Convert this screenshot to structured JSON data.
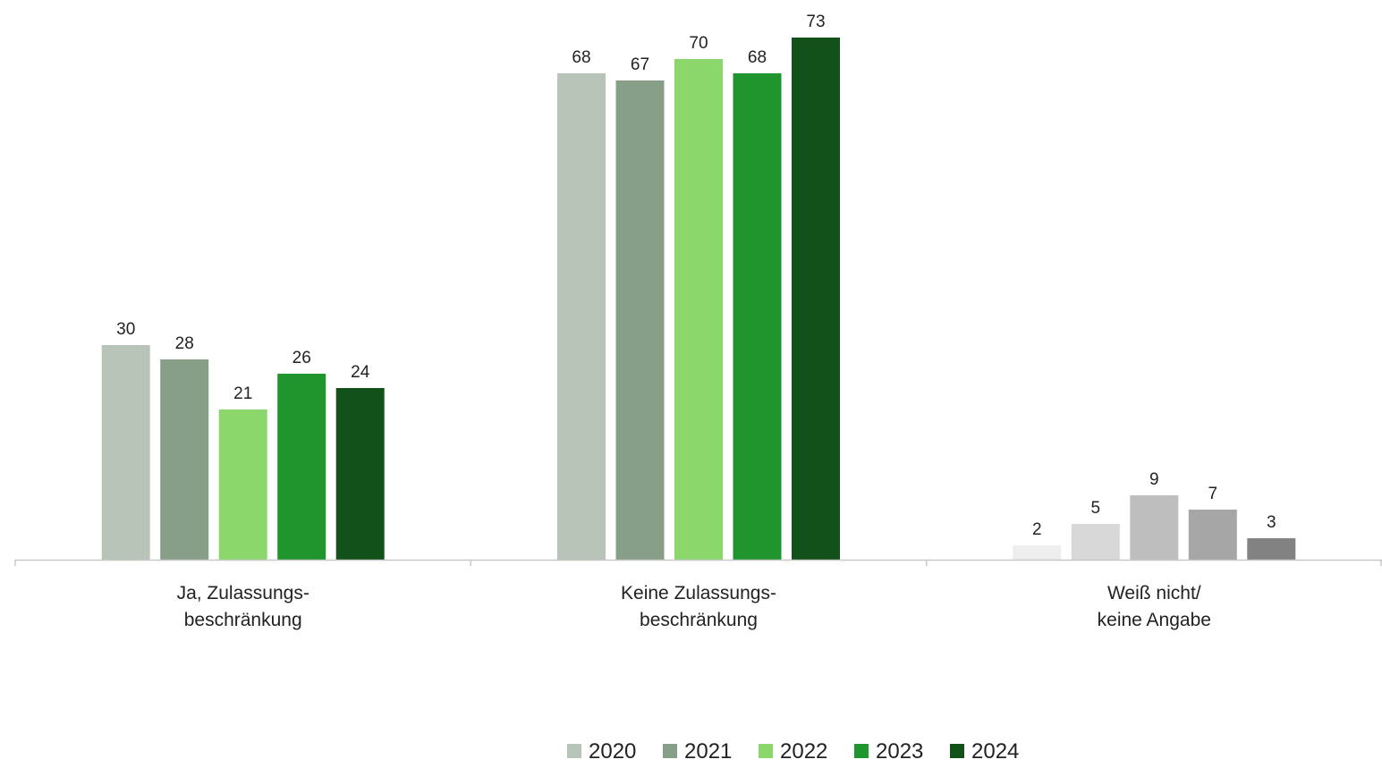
{
  "chart_data": {
    "type": "bar",
    "title": "",
    "xlabel": "",
    "ylabel": "",
    "ylim": [
      0,
      73
    ],
    "grid": false,
    "legend_position": "bottom",
    "categories": [
      [
        "Ja, Zulassungs-",
        "beschränkung"
      ],
      [
        "Keine Zulassungs-",
        "beschränkung"
      ],
      [
        "Weiß nicht/",
        "keine Angabe"
      ]
    ],
    "series": [
      {
        "name": "2020",
        "values": [
          30,
          68,
          2
        ]
      },
      {
        "name": "2021",
        "values": [
          28,
          67,
          5
        ]
      },
      {
        "name": "2022",
        "values": [
          21,
          70,
          9
        ]
      },
      {
        "name": "2023",
        "values": [
          26,
          68,
          7
        ]
      },
      {
        "name": "2024",
        "values": [
          24,
          73,
          3
        ]
      }
    ],
    "series_colors": [
      "#b8c4b8",
      "#879f87",
      "#8bd76b",
      "#20952e",
      "#125119"
    ],
    "third_group_colors": [
      "#eeeeee",
      "#d8d8d8",
      "#bebebe",
      "#a6a6a6",
      "#828282"
    ],
    "axis_color": "#c8c8c8"
  }
}
